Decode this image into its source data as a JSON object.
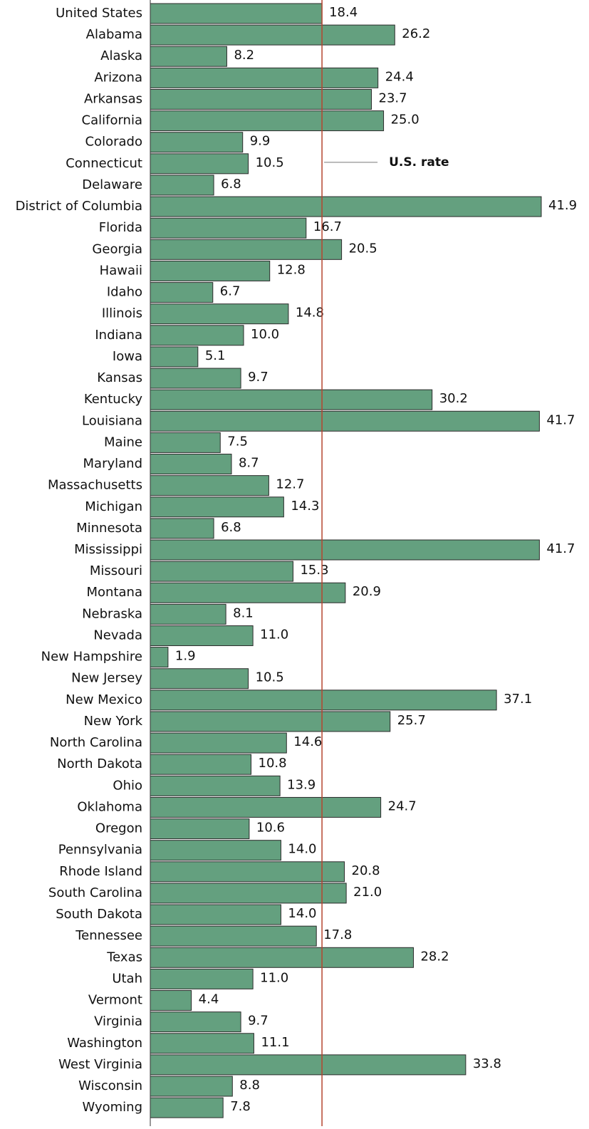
{
  "chart_data": {
    "type": "bar",
    "orientation": "horizontal",
    "color": "#64a07f",
    "annotation": "U.S. rate",
    "categories": [
      "United States",
      "Alabama",
      "Alaska",
      "Arizona",
      "Arkansas",
      "California",
      "Colorado",
      "Connecticut",
      "Delaware",
      "District of Columbia",
      "Florida",
      "Georgia",
      "Hawaii",
      "Idaho",
      "Illinois",
      "Indiana",
      "Iowa",
      "Kansas",
      "Kentucky",
      "Louisiana",
      "Maine",
      "Maryland",
      "Massachusetts",
      "Michigan",
      "Minnesota",
      "Mississippi",
      "Missouri",
      "Montana",
      "Nebraska",
      "Nevada",
      "New Hampshire",
      "New Jersey",
      "New Mexico",
      "New York",
      "North Carolina",
      "North Dakota",
      "Ohio",
      "Oklahoma",
      "Oregon",
      "Pennsylvania",
      "Rhode Island",
      "South Carolina",
      "South Dakota",
      "Tennessee",
      "Texas",
      "Utah",
      "Vermont",
      "Virginia",
      "Washington",
      "West Virginia",
      "Wisconsin",
      "Wyoming"
    ],
    "values": [
      18.4,
      26.2,
      8.2,
      24.4,
      23.7,
      25.0,
      9.9,
      10.5,
      6.8,
      41.9,
      16.7,
      20.5,
      12.8,
      6.7,
      14.8,
      10.0,
      5.1,
      9.7,
      30.2,
      41.7,
      7.5,
      8.7,
      12.7,
      14.3,
      6.8,
      41.7,
      15.3,
      20.9,
      8.1,
      11.0,
      1.9,
      10.5,
      37.1,
      25.7,
      14.6,
      10.8,
      13.9,
      24.7,
      10.6,
      14.0,
      20.8,
      21.0,
      14.0,
      17.8,
      28.2,
      11.0,
      4.4,
      9.7,
      11.1,
      33.8,
      8.8,
      7.8
    ],
    "value_labels": [
      "18.4",
      "26.2",
      "8.2",
      "24.4",
      "23.7",
      "25.0",
      "9.9",
      "10.5",
      "6.8",
      "41.9",
      "16.7",
      "20.5",
      "12.8",
      "6.7",
      "14.8",
      "10.0",
      "5.1",
      "9.7",
      "30.2",
      "41.7",
      "7.5",
      "8.7",
      "12.7",
      "14.3",
      "6.8",
      "41.7",
      "15.3",
      "20.9",
      "8.1",
      "11.0",
      "1.9",
      "10.5",
      "37.1",
      "25.7",
      "14.6",
      "10.8",
      "13.9",
      "24.7",
      "10.6",
      "14.0",
      "20.8",
      "21.0",
      "14.0",
      "17.8",
      "28.2",
      "11.0",
      "4.4",
      "9.7",
      "11.1",
      "33.8",
      "8.8",
      "7.8"
    ]
  }
}
